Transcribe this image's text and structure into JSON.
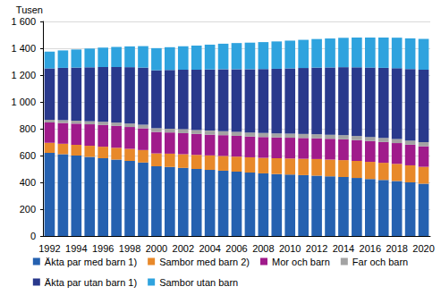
{
  "chart_data": {
    "type": "bar",
    "stacked": true,
    "grid": true,
    "legend": "bottom",
    "y_label": "Tusen",
    "categories": [
      "1992",
      null,
      "1994",
      null,
      "1996",
      null,
      "1998",
      null,
      "2000",
      null,
      "2002",
      null,
      "2004",
      null,
      "2006",
      null,
      "2008",
      null,
      "2010",
      null,
      "2012",
      null,
      "2014",
      null,
      "2016",
      null,
      "2018",
      null,
      "2020"
    ],
    "ylim": [
      0,
      1600
    ],
    "yticks": [
      0,
      200,
      400,
      600,
      800,
      {
        "value": 1000,
        "label": "1 000"
      },
      {
        "value": 1200,
        "label": "1 200"
      },
      {
        "value": 1400,
        "label": "1 400"
      },
      {
        "value": 1600,
        "label": "1 600"
      }
    ],
    "series": [
      {
        "name": "Äkta par med barn 1)",
        "color": "#2561b0",
        "values": [
          620,
          610,
          600,
          590,
          580,
          570,
          560,
          548,
          520,
          515,
          508,
          500,
          493,
          487,
          480,
          473,
          467,
          462,
          458,
          454,
          450,
          445,
          440,
          433,
          425,
          418,
          410,
          400,
          390
        ]
      },
      {
        "name": "Sambor med barn 2)",
        "color": "#e8892a",
        "values": [
          75,
          78,
          80,
          83,
          86,
          88,
          90,
          93,
          96,
          99,
          102,
          105,
          108,
          110,
          112,
          114,
          116,
          118,
          120,
          122,
          124,
          125,
          126,
          127,
          128,
          128,
          128,
          127,
          126
        ]
      },
      {
        "name": "Mor och barn",
        "color": "#a01b8b",
        "values": [
          152,
          155,
          158,
          160,
          162,
          163,
          163,
          162,
          160,
          158,
          157,
          156,
          155,
          155,
          155,
          155,
          155,
          155,
          155,
          155,
          155,
          155,
          155,
          155,
          155,
          155,
          155,
          154,
          153
        ]
      },
      {
        "name": "Far och barn",
        "color": "#a3a3a3",
        "values": [
          20,
          21,
          22,
          23,
          24,
          25,
          26,
          27,
          28,
          28,
          29,
          29,
          30,
          30,
          30,
          30,
          30,
          30,
          30,
          30,
          30,
          30,
          31,
          31,
          31,
          31,
          31,
          31,
          31
        ]
      },
      {
        "name": "Äkta par utan barn 1)",
        "color": "#29398c",
        "values": [
          383,
          390,
          396,
          402,
          408,
          414,
          420,
          426,
          432,
          438,
          444,
          450,
          456,
          462,
          467,
          472,
          477,
          482,
          487,
          492,
          497,
          502,
          507,
          512,
          517,
          522,
          527,
          533,
          540
        ]
      },
      {
        "name": "Sambor utan barn",
        "color": "#2fa3de",
        "values": [
          125,
          130,
          135,
          140,
          145,
          150,
          155,
          160,
          165,
          170,
          175,
          180,
          185,
          190,
          195,
          198,
          201,
          204,
          207,
          210,
          213,
          216,
          219,
          222,
          224,
          226,
          228,
          229,
          230
        ]
      }
    ]
  }
}
